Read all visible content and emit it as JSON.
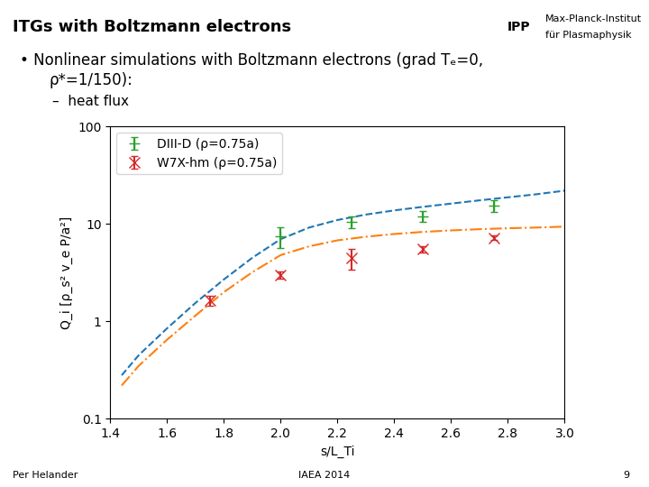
{
  "chart_data": {
    "type": "line",
    "title": "ITGs with Boltzmann electrons",
    "annotations": [
      "IPP",
      "Max-Planck-Institut",
      "für Plasmaphysik",
      "• Nonlinear simulations with Boltzmann electrons (grad Tₑ=0,",
      "ρ*=1/150):",
      "–  heat flux",
      "Per Helander",
      "IAEA 2014",
      "9"
    ],
    "x_label": "s/L_Ti",
    "y_label": "Q_i [ρ_s² v_e P/a²]",
    "log": "y",
    "xlim": [
      1.4,
      3.0
    ],
    "ylim": [
      0.1,
      100
    ],
    "xticks": [
      1.4,
      1.6,
      1.8,
      2.0,
      2.2,
      2.4,
      2.6,
      2.8,
      3.0
    ],
    "yticks": [
      0.1,
      1,
      10,
      100
    ],
    "legend": "upper left",
    "series": [
      {
        "type": "line",
        "line_style": "dashed",
        "x": [
          1.44,
          1.5,
          1.6,
          1.7,
          1.8,
          1.9,
          2.0,
          2.1,
          2.2,
          2.3,
          2.4,
          2.5,
          2.6,
          2.7,
          2.8,
          2.9,
          3.0
        ],
        "values": [
          0.28,
          0.45,
          0.85,
          1.55,
          2.7,
          4.5,
          7.0,
          9.2,
          11.0,
          12.5,
          13.8,
          15.0,
          16.2,
          17.5,
          18.8,
          20.2,
          22.0
        ]
      },
      {
        "type": "line",
        "line_style": "dashdot",
        "x": [
          1.44,
          1.5,
          1.6,
          1.7,
          1.8,
          1.9,
          2.0,
          2.1,
          2.2,
          2.3,
          2.4,
          2.5,
          2.6,
          2.7,
          2.8,
          2.9,
          3.0
        ],
        "values": [
          0.22,
          0.35,
          0.65,
          1.15,
          2.0,
          3.2,
          4.8,
          5.9,
          6.8,
          7.4,
          7.9,
          8.3,
          8.6,
          8.85,
          9.05,
          9.2,
          9.4
        ]
      },
      {
        "name": "DIII-D (ρ=0.75a)",
        "type": "errorbar",
        "marker": "+",
        "x": [
          2.0,
          2.25,
          2.5,
          2.75
        ],
        "values": [
          7.5,
          10.5,
          12.0,
          15.5
        ],
        "yerr": [
          1.8,
          1.5,
          1.5,
          2.2
        ]
      },
      {
        "name": "W7X-hm (ρ=0.75a)",
        "type": "errorbar",
        "marker": "x",
        "x": [
          1.75,
          2.0,
          2.25,
          2.5,
          2.75
        ],
        "values": [
          1.65,
          3.0,
          4.5,
          5.5,
          7.2
        ],
        "yerr": [
          0.2,
          0.25,
          1.1,
          0.4,
          0.4
        ]
      }
    ]
  }
}
